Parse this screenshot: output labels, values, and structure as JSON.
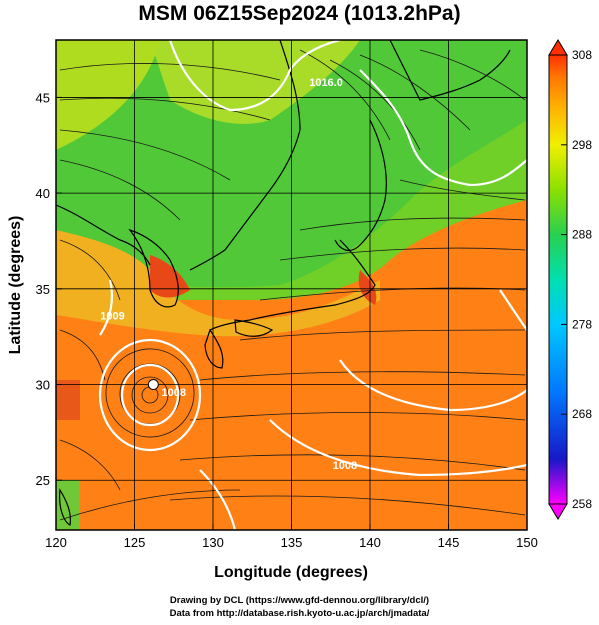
{
  "title": "MSM 06Z15Sep2024 (1013.2hPa)",
  "x_axis": {
    "title": "Longitude (degrees)",
    "range": [
      120,
      150
    ],
    "ticks": [
      120,
      125,
      130,
      135,
      140,
      145,
      150
    ]
  },
  "y_axis": {
    "title": "Latitude  (degrees)",
    "range": [
      22.4,
      48
    ],
    "ticks": [
      25,
      30,
      35,
      40,
      45
    ]
  },
  "colorbar": {
    "range": [
      258,
      308
    ],
    "ticks": [
      308,
      298,
      288,
      278,
      268,
      258
    ],
    "colors": [
      "#ff00ff",
      "#1818c8",
      "#0078ff",
      "#00c8ff",
      "#00e0b0",
      "#28d050",
      "#8ce000",
      "#f0f000",
      "#ffb400",
      "#ff7800",
      "#ff3000"
    ]
  },
  "contour_labels": [
    {
      "text": "1016.0",
      "lon": 137.2,
      "lat": 45.6
    },
    {
      "text": "1008",
      "lon": 127.5,
      "lat": 29.4
    },
    {
      "text": "1008",
      "lon": 138.4,
      "lat": 25.6
    },
    {
      "text": "1009",
      "lon": 123.6,
      "lat": 33.4
    }
  ],
  "typhoon_center": {
    "lon": 126.2,
    "lat": 30.0
  },
  "credits": [
    "Drawing by DCL (https://www.gfd-dennou.org/library/dcl/)",
    "Data from http://database.rish.kyoto-u.ac.jp/arch/jmadata/"
  ]
}
